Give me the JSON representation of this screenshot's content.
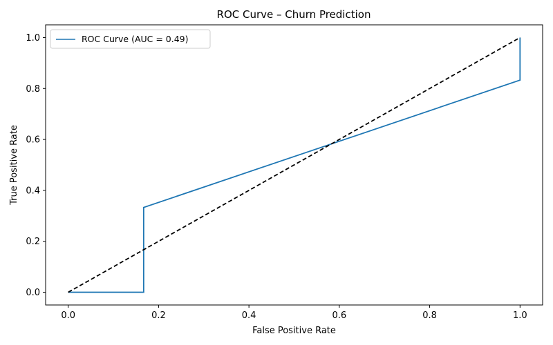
{
  "chart_data": {
    "type": "line",
    "title": "ROC Curve – Churn Prediction",
    "xlabel": "False Positive Rate",
    "ylabel": "True Positive Rate",
    "xlim": [
      -0.05,
      1.05
    ],
    "ylim": [
      -0.05,
      1.05
    ],
    "xticks": [
      0.0,
      0.2,
      0.4,
      0.6,
      0.8,
      1.0
    ],
    "yticks": [
      0.0,
      0.2,
      0.4,
      0.6,
      0.8,
      1.0
    ],
    "xtick_labels": [
      "0.0",
      "0.2",
      "0.4",
      "0.6",
      "0.8",
      "1.0"
    ],
    "ytick_labels": [
      "0.0",
      "0.2",
      "0.4",
      "0.6",
      "0.8",
      "1.0"
    ],
    "grid": false,
    "legend_position": "top-left",
    "series": [
      {
        "name": "ROC Curve (AUC = 0.49)",
        "color": "#1f77b4",
        "style": "solid",
        "x": [
          0.0,
          0.167,
          0.167,
          1.0,
          1.0
        ],
        "y": [
          0.0,
          0.0,
          0.333,
          0.833,
          1.0
        ]
      },
      {
        "color": "#000000",
        "style": "dashed",
        "x": [
          0.0,
          1.0
        ],
        "y": [
          0.0,
          1.0
        ]
      }
    ]
  }
}
